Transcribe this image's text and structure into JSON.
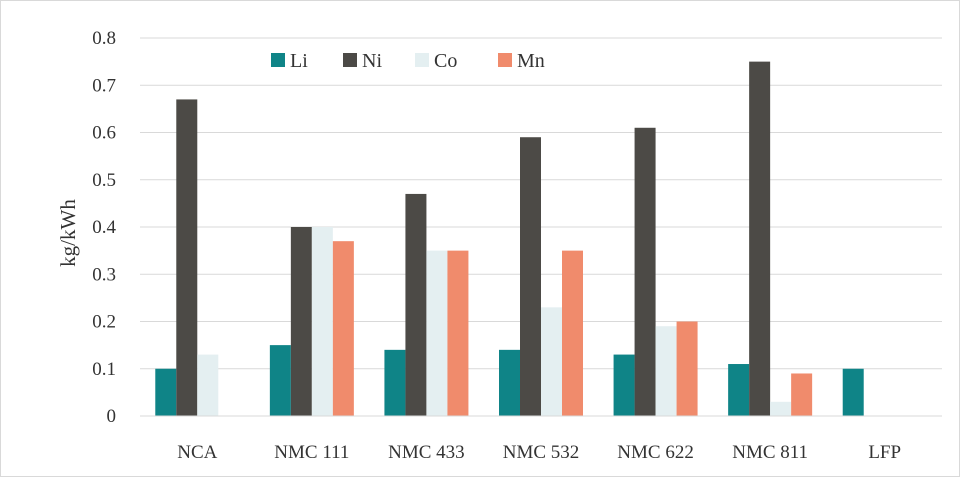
{
  "chart_data": {
    "type": "bar",
    "title": "",
    "xlabel": "",
    "ylabel": "kg/kWh",
    "ylim": [
      0,
      0.8
    ],
    "yticks": [
      0,
      0.1,
      0.2,
      0.3,
      0.4,
      0.5,
      0.6,
      0.7,
      0.8
    ],
    "ytick_labels": [
      "0",
      "0.1",
      "0.2",
      "0.3",
      "0.4",
      "0.5",
      "0.6",
      "0.7",
      "0.8"
    ],
    "grid": true,
    "legend_position": "top-left",
    "categories": [
      "NCA",
      "NMC 111",
      "NMC 433",
      "NMC 532",
      "NMC 622",
      "NMC 811",
      "LFP"
    ],
    "series": [
      {
        "name": "Li",
        "color": "#0f8487",
        "values": [
          0.1,
          0.15,
          0.14,
          0.14,
          0.13,
          0.11,
          0.1
        ]
      },
      {
        "name": "Ni",
        "color": "#4c4a46",
        "values": [
          0.67,
          0.4,
          0.47,
          0.59,
          0.61,
          0.75,
          0
        ]
      },
      {
        "name": "Co",
        "color": "#e4eff1",
        "values": [
          0.13,
          0.4,
          0.35,
          0.23,
          0.19,
          0.03,
          0
        ]
      },
      {
        "name": "Mn",
        "color": "#f08b6c",
        "values": [
          0,
          0.37,
          0.35,
          0.35,
          0.2,
          0.09,
          0
        ]
      }
    ]
  }
}
